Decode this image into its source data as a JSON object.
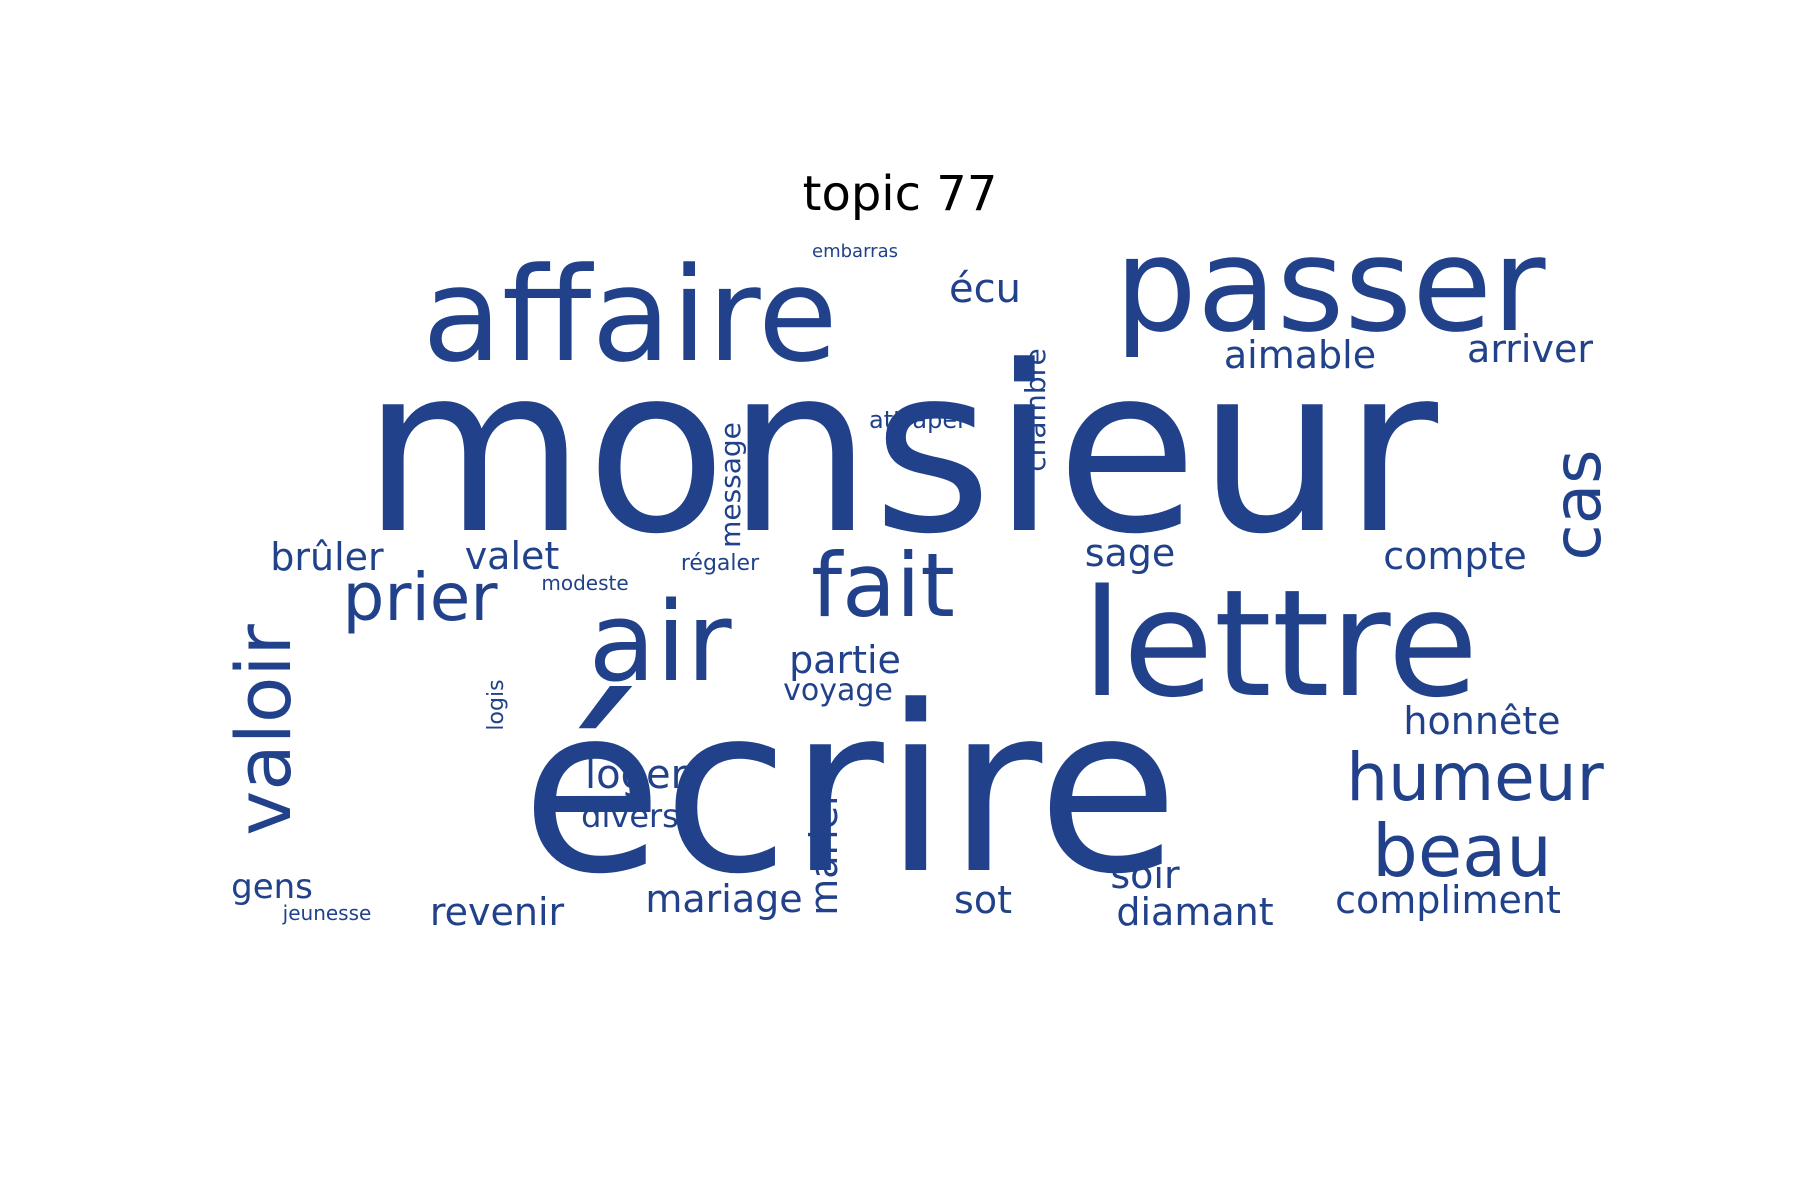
{
  "title": "topic 77",
  "colors": {
    "word": "#21428b",
    "title": "#000000",
    "background": "#ffffff"
  },
  "words": [
    {
      "id": "monsieur",
      "text": "monsieur"
    },
    {
      "id": "ecrire",
      "text": "écrire"
    },
    {
      "id": "lettre",
      "text": "lettre"
    },
    {
      "id": "affaire",
      "text": "affaire"
    },
    {
      "id": "passer",
      "text": "passer"
    },
    {
      "id": "air",
      "text": "air"
    },
    {
      "id": "fait",
      "text": "fait"
    },
    {
      "id": "valoir",
      "text": "valoir"
    },
    {
      "id": "prier",
      "text": "prier"
    },
    {
      "id": "humeur",
      "text": "humeur"
    },
    {
      "id": "beau",
      "text": "beau"
    },
    {
      "id": "cas",
      "text": "cas"
    },
    {
      "id": "ecu",
      "text": "écu"
    },
    {
      "id": "aimable",
      "text": "aimable"
    },
    {
      "id": "arriver",
      "text": "arriver"
    },
    {
      "id": "embarras",
      "text": "embarras"
    },
    {
      "id": "attraper",
      "text": "attraper"
    },
    {
      "id": "chambre",
      "text": "chambre"
    },
    {
      "id": "message",
      "text": "message"
    },
    {
      "id": "bruler",
      "text": "brûler"
    },
    {
      "id": "valet",
      "text": "valet"
    },
    {
      "id": "sage",
      "text": "sage"
    },
    {
      "id": "compte",
      "text": "compte"
    },
    {
      "id": "modeste",
      "text": "modeste"
    },
    {
      "id": "regaler",
      "text": "régaler"
    },
    {
      "id": "partie",
      "text": "partie"
    },
    {
      "id": "voyage",
      "text": "voyage"
    },
    {
      "id": "logis",
      "text": "logis"
    },
    {
      "id": "honnete",
      "text": "honnête"
    },
    {
      "id": "loger",
      "text": "loger"
    },
    {
      "id": "divers",
      "text": "divers"
    },
    {
      "id": "marier",
      "text": "marier"
    },
    {
      "id": "gens",
      "text": "gens"
    },
    {
      "id": "jeunesse",
      "text": "jeunesse"
    },
    {
      "id": "revenir",
      "text": "revenir"
    },
    {
      "id": "mariage",
      "text": "mariage"
    },
    {
      "id": "sot",
      "text": "sot"
    },
    {
      "id": "soir",
      "text": "soir"
    },
    {
      "id": "diamant",
      "text": "diamant"
    },
    {
      "id": "compliment",
      "text": "compliment"
    }
  ]
}
